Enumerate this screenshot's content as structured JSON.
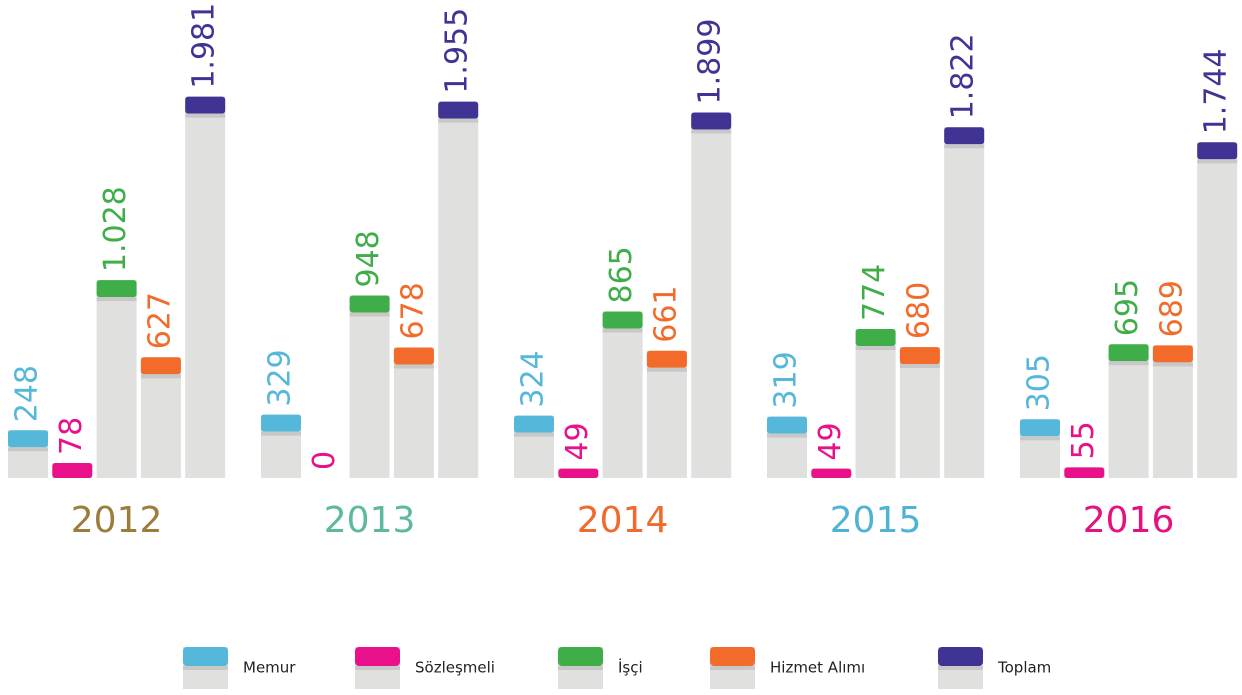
{
  "chart_data": {
    "type": "bar",
    "categories": [
      "2012",
      "2013",
      "2014",
      "2015",
      "2016"
    ],
    "category_colors": [
      "#9b7d3c",
      "#5cb9a0",
      "#f06a2b",
      "#4fb3d6",
      "#e5117f"
    ],
    "series": [
      {
        "name": "Memur",
        "color": "#55b7d9",
        "values": [
          248,
          329,
          324,
          319,
          305
        ],
        "value_labels": [
          "248",
          "329",
          "324",
          "319",
          "305"
        ]
      },
      {
        "name": "Sözleşmeli",
        "color": "#e8118a",
        "values": [
          78,
          0,
          49,
          49,
          55
        ],
        "value_labels": [
          "78",
          "0",
          "49",
          "49",
          "55"
        ]
      },
      {
        "name": "İşçi",
        "color": "#3fae49",
        "values": [
          1028,
          948,
          865,
          774,
          695
        ],
        "value_labels": [
          "1.028",
          "948",
          "865",
          "774",
          "695"
        ]
      },
      {
        "name": "Hizmet Alımı",
        "color": "#f26b2a",
        "values": [
          627,
          678,
          661,
          680,
          689
        ],
        "value_labels": [
          "627",
          "678",
          "661",
          "680",
          "689"
        ]
      },
      {
        "name": "Toplam",
        "color": "#3f3393",
        "values": [
          1981,
          1955,
          1899,
          1822,
          1744
        ],
        "value_labels": [
          "1.981",
          "1.955",
          "1.899",
          "1.822",
          "1.744"
        ]
      }
    ],
    "ylim": [
      0,
      2000
    ]
  }
}
